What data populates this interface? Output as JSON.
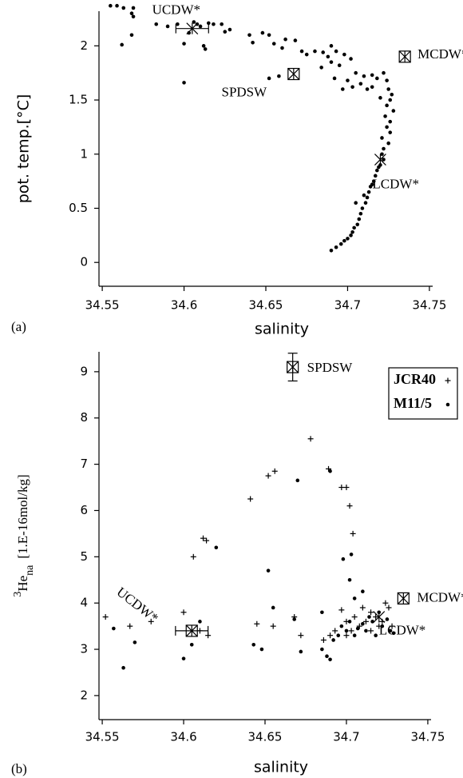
{
  "chart_data": [
    {
      "type": "scatter",
      "panel_label": "(a)",
      "x_label": "salinity",
      "y_label": "pot. temp.[°C]",
      "xlim": [
        34.548,
        34.752
      ],
      "xticks": [
        34.55,
        34.6,
        34.65,
        34.7,
        34.75
      ],
      "ylim": [
        -0.22,
        2.32
      ],
      "yticks": [
        0,
        0.5,
        1,
        1.5,
        2
      ],
      "series": [
        {
          "marker": "dot",
          "color": "#000000",
          "x": [
            34.555,
            34.559,
            34.563,
            34.568,
            34.569,
            34.569,
            34.562,
            34.568,
            34.583,
            34.59,
            34.596,
            34.6,
            34.603,
            34.606,
            34.608,
            34.61,
            34.612,
            34.613,
            34.615,
            34.618,
            34.623,
            34.625,
            34.628,
            34.6,
            34.64,
            34.642,
            34.648,
            34.652,
            34.655,
            34.66,
            34.652,
            34.658,
            34.662,
            34.668,
            34.672,
            34.675,
            34.68,
            34.685,
            34.688,
            34.69,
            34.693,
            34.695,
            34.698,
            34.702,
            34.692,
            34.697,
            34.7,
            34.705,
            34.708,
            34.71,
            34.712,
            34.715,
            34.718,
            34.722,
            34.724,
            34.725,
            34.726,
            34.727,
            34.728,
            34.724,
            34.72,
            34.726,
            34.724,
            34.726,
            34.725,
            34.722,
            34.721,
            34.72,
            34.718,
            34.717,
            34.716,
            34.714,
            34.713,
            34.712,
            34.711,
            34.709,
            34.708,
            34.707,
            34.706,
            34.704,
            34.703,
            34.702,
            34.7,
            34.698,
            34.696,
            34.693,
            34.69,
            34.705,
            34.71,
            34.715,
            34.719,
            34.722,
            34.721,
            34.723,
            34.715,
            34.703,
            34.684,
            34.69
          ],
          "y": [
            2.37,
            2.37,
            2.35,
            2.3,
            2.27,
            2.35,
            2.01,
            2.1,
            2.2,
            2.18,
            2.2,
            2.02,
            2.12,
            2.22,
            2.2,
            2.18,
            2.0,
            1.97,
            2.21,
            2.2,
            2.2,
            2.13,
            2.15,
            1.66,
            2.1,
            2.03,
            2.12,
            2.1,
            2.02,
            1.98,
            1.7,
            1.72,
            2.06,
            2.05,
            1.95,
            1.92,
            1.95,
            1.94,
            1.9,
            2.0,
            1.95,
            1.82,
            1.92,
            1.88,
            1.7,
            1.6,
            1.68,
            1.75,
            1.65,
            1.72,
            1.6,
            1.73,
            1.7,
            1.75,
            1.68,
            1.6,
            1.5,
            1.55,
            1.4,
            1.45,
            1.52,
            1.3,
            1.25,
            1.2,
            1.1,
            1.05,
            1.0,
            0.9,
            0.85,
            0.8,
            0.75,
            0.7,
            0.65,
            0.6,
            0.55,
            0.5,
            0.45,
            0.4,
            0.35,
            0.32,
            0.28,
            0.25,
            0.22,
            0.2,
            0.17,
            0.14,
            0.11,
            0.55,
            0.62,
            0.72,
            0.88,
            0.95,
            1.15,
            1.35,
            1.62,
            1.62,
            1.8,
            1.85
          ]
        }
      ],
      "annotations": [
        {
          "text": "UCDW*",
          "x": 34.605,
          "y": 2.16,
          "xerr": 0.01,
          "marker": "star"
        },
        {
          "text": "SPDSW",
          "x": 34.667,
          "y": 1.74,
          "marker": "boxed-star"
        },
        {
          "text": "MCDW*",
          "x": 34.735,
          "y": 1.9,
          "marker": "boxed-star"
        },
        {
          "text": "LCDW*",
          "x": 34.72,
          "y": 0.95,
          "marker": "star"
        }
      ]
    },
    {
      "type": "scatter",
      "panel_label": "(b)",
      "x_label": "salinity",
      "y_label": {
        "sup": "3",
        "main": "He",
        "sub": "na",
        "unit": "[1.E-16mol/kg]"
      },
      "xlim": [
        34.548,
        34.752
      ],
      "xticks": [
        34.55,
        34.6,
        34.65,
        34.7,
        34.75
      ],
      "ylim": [
        1.48,
        9.43
      ],
      "yticks": [
        2,
        3,
        4,
        5,
        6,
        7,
        8,
        9
      ],
      "series": [
        {
          "name": "JCR40",
          "marker": "plus",
          "color": "#000000",
          "x": [
            34.552,
            34.567,
            34.58,
            34.6,
            34.606,
            34.614,
            34.612,
            34.61,
            34.615,
            34.641,
            34.652,
            34.656,
            34.678,
            34.689,
            34.697,
            34.7,
            34.702,
            34.704,
            34.645,
            34.655,
            34.668,
            34.672,
            34.686,
            34.69,
            34.693,
            34.697,
            34.7,
            34.703,
            34.705,
            34.708,
            34.71,
            34.712,
            34.715,
            34.718,
            34.72,
            34.722,
            34.724,
            34.726,
            34.728,
            34.715,
            34.7
          ],
          "y": [
            3.7,
            3.5,
            3.6,
            3.8,
            5.0,
            5.35,
            5.4,
            3.4,
            3.3,
            6.25,
            6.75,
            6.85,
            7.55,
            6.9,
            6.5,
            6.5,
            6.1,
            5.5,
            3.55,
            3.5,
            3.7,
            3.3,
            3.2,
            3.3,
            3.4,
            3.85,
            3.6,
            3.4,
            3.7,
            3.5,
            3.9,
            3.6,
            3.4,
            3.7,
            3.5,
            3.6,
            4.0,
            3.9,
            3.5,
            3.8,
            3.3
          ]
        },
        {
          "name": "M11/5",
          "marker": "dot",
          "color": "#000000",
          "x": [
            34.557,
            34.563,
            34.57,
            34.6,
            34.605,
            34.61,
            34.62,
            34.652,
            34.655,
            34.67,
            34.69,
            34.698,
            34.703,
            34.705,
            34.71,
            34.685,
            34.688,
            34.69,
            34.692,
            34.695,
            34.697,
            34.7,
            34.702,
            34.705,
            34.707,
            34.71,
            34.712,
            34.714,
            34.716,
            34.718,
            34.72,
            34.722,
            34.725,
            34.727,
            34.729,
            34.672,
            34.668,
            34.648,
            34.643,
            34.685,
            34.702
          ],
          "y": [
            3.45,
            2.6,
            3.15,
            2.8,
            3.1,
            3.6,
            5.2,
            4.7,
            3.9,
            6.65,
            6.85,
            4.95,
            5.05,
            4.1,
            4.25,
            3.0,
            2.85,
            2.78,
            3.2,
            3.3,
            3.5,
            3.4,
            3.6,
            3.3,
            3.45,
            3.55,
            3.4,
            3.7,
            3.6,
            3.3,
            3.8,
            3.5,
            3.65,
            3.4,
            3.35,
            2.95,
            3.65,
            3.0,
            3.1,
            3.8,
            4.5
          ]
        }
      ],
      "annotations": [
        {
          "text": "SPDSW",
          "x": 34.667,
          "y": 9.1,
          "yerr": 0.3,
          "marker": "boxed-star"
        },
        {
          "text": "UCDW*",
          "x": 34.605,
          "y": 3.4,
          "xerr": 0.01,
          "marker": "boxed-star"
        },
        {
          "text": "MCDW*",
          "x": 34.735,
          "y": 4.1,
          "marker": "boxed-star"
        },
        {
          "text": "LCDW*",
          "x": 34.72,
          "y": 3.7,
          "marker": "star"
        }
      ]
    }
  ]
}
